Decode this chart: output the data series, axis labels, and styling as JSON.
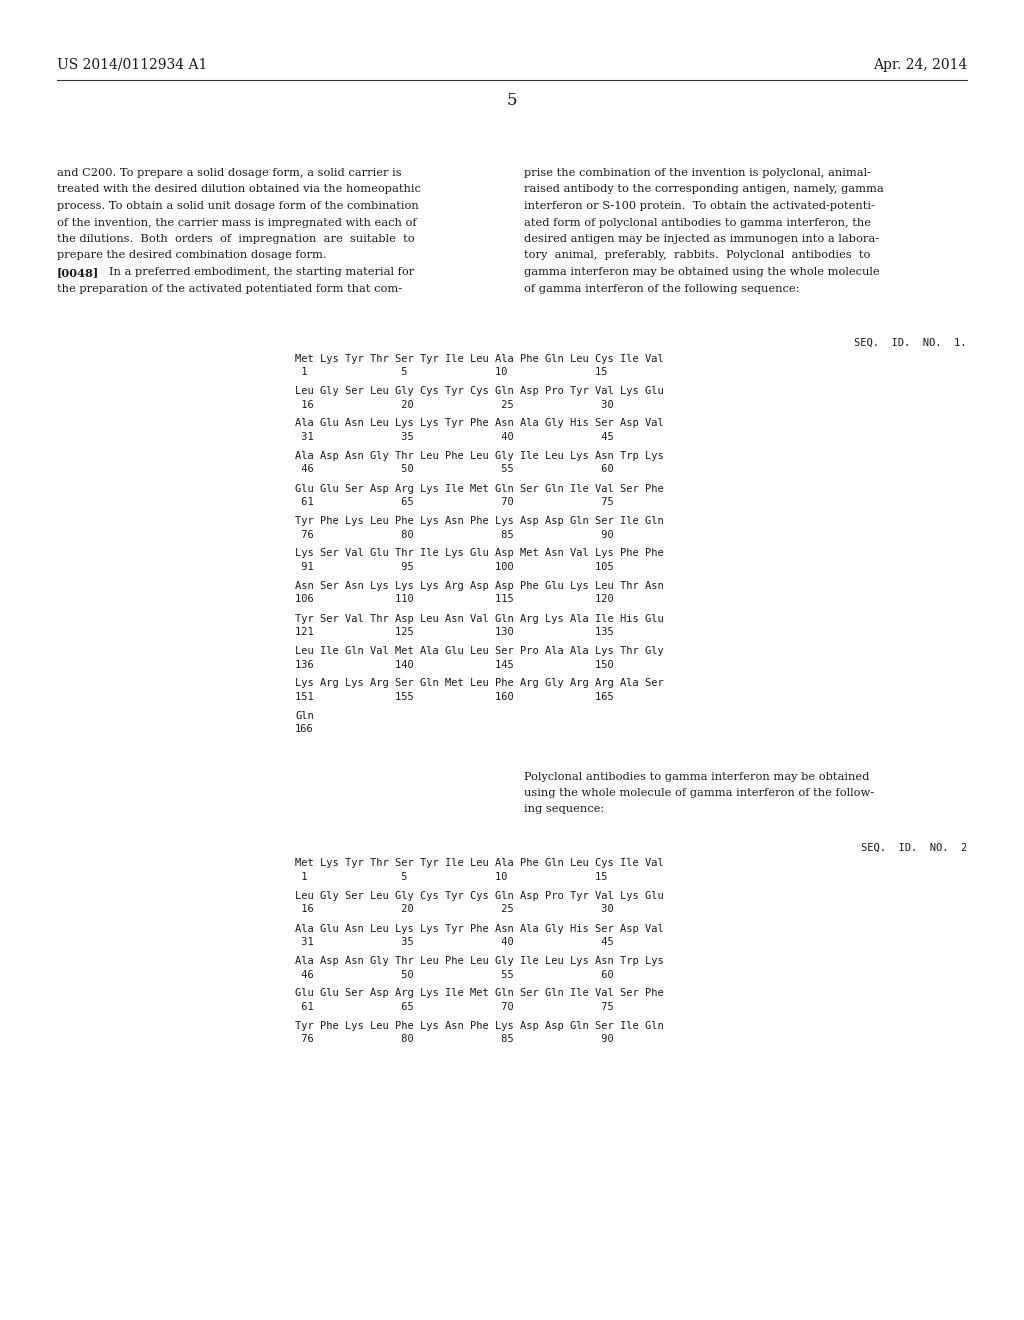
{
  "background_color": "#ffffff",
  "header_left": "US 2014/0112934 A1",
  "header_right": "Apr. 24, 2014",
  "page_number": "5",
  "para_left": [
    "and C200. To prepare a solid dosage form, a solid carrier is",
    "treated with the desired dilution obtained via the homeopathic",
    "process. To obtain a solid unit dosage form of the combination",
    "of the invention, the carrier mass is impregnated with each of",
    "the dilutions.  Both  orders  of  impregnation  are  suitable  to",
    "prepare the desired combination dosage form.",
    "[0048]    In a preferred embodiment, the starting material for",
    "the preparation of the activated potentiated form that com-"
  ],
  "para_right": [
    "prise the combination of the invention is polyclonal, animal-",
    "raised antibody to the corresponding antigen, namely, gamma",
    "interferon or S-100 protein.  To obtain the activated-potenti-",
    "ated form of polyclonal antibodies to gamma interferon, the",
    "desired antigen may be injected as immunogen into a labora-",
    "tory  animal,  preferably,  rabbits.  Polyclonal  antibodies  to",
    "gamma interferon may be obtained using the whole molecule",
    "of gamma interferon of the following sequence:"
  ],
  "seq1_label": "SEQ.  ID.  NO.  1.",
  "seq1_rows": [
    [
      "Met Lys Tyr Thr Ser Tyr Ile Leu Ala Phe Gln Leu Cys Ile Val",
      " 1               5              10              15"
    ],
    [
      "Leu Gly Ser Leu Gly Cys Tyr Cys Gln Asp Pro Tyr Val Lys Glu",
      " 16              20              25              30"
    ],
    [
      "Ala Glu Asn Leu Lys Lys Tyr Phe Asn Ala Gly His Ser Asp Val",
      " 31              35              40              45"
    ],
    [
      "Ala Asp Asn Gly Thr Leu Phe Leu Gly Ile Leu Lys Asn Trp Lys",
      " 46              50              55              60"
    ],
    [
      "Glu Glu Ser Asp Arg Lys Ile Met Gln Ser Gln Ile Val Ser Phe",
      " 61              65              70              75"
    ],
    [
      "Tyr Phe Lys Leu Phe Lys Asn Phe Lys Asp Asp Gln Ser Ile Gln",
      " 76              80              85              90"
    ],
    [
      "Lys Ser Val Glu Thr Ile Lys Glu Asp Met Asn Val Lys Phe Phe",
      " 91              95             100             105"
    ],
    [
      "Asn Ser Asn Lys Lys Lys Arg Asp Asp Phe Glu Lys Leu Thr Asn",
      "106             110             115             120"
    ],
    [
      "Tyr Ser Val Thr Asp Leu Asn Val Gln Arg Lys Ala Ile His Glu",
      "121             125             130             135"
    ],
    [
      "Leu Ile Gln Val Met Ala Glu Leu Ser Pro Ala Ala Lys Thr Gly",
      "136             140             145             150"
    ],
    [
      "Lys Arg Lys Arg Ser Gln Met Leu Phe Arg Gly Arg Arg Ala Ser",
      "151             155             160             165"
    ],
    [
      "Gln",
      "166"
    ]
  ],
  "mid_para": [
    "Polyclonal antibodies to gamma interferon may be obtained",
    "using the whole molecule of gamma interferon of the follow-",
    "ing sequence:"
  ],
  "seq2_label": "SEQ.  ID.  NO.  2",
  "seq2_rows": [
    [
      "Met Lys Tyr Thr Ser Tyr Ile Leu Ala Phe Gln Leu Cys Ile Val",
      " 1               5              10              15"
    ],
    [
      "Leu Gly Ser Leu Gly Cys Tyr Cys Gln Asp Pro Tyr Val Lys Glu",
      " 16              20              25              30"
    ],
    [
      "Ala Glu Asn Leu Lys Lys Tyr Phe Asn Ala Gly His Ser Asp Val",
      " 31              35              40              45"
    ],
    [
      "Ala Asp Asn Gly Thr Leu Phe Leu Gly Ile Leu Lys Asn Trp Lys",
      " 46              50              55              60"
    ],
    [
      "Glu Glu Ser Asp Arg Lys Ile Met Gln Ser Gln Ile Val Ser Phe",
      " 61              65              70              75"
    ],
    [
      "Tyr Phe Lys Leu Phe Lys Asn Phe Lys Asp Asp Gln Ser Ile Gln",
      " 76              80              85              90"
    ]
  ]
}
